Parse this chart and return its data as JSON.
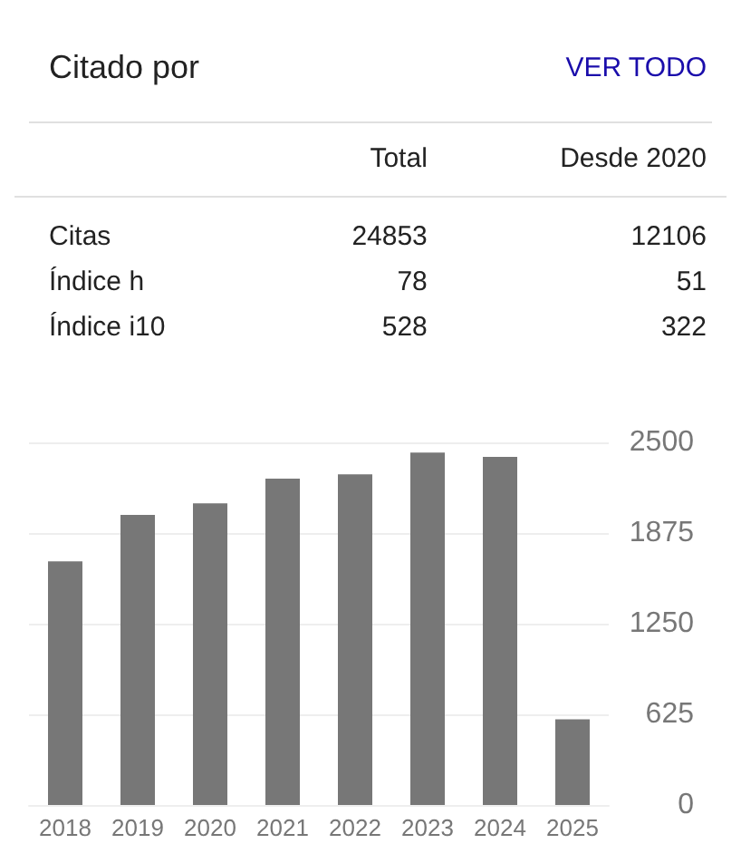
{
  "chart_data": [
    {
      "type": "other",
      "title": "Citado por",
      "annotations": [
        "VER TODO"
      ],
      "categories": [
        "Citas",
        "Índice h",
        "Índice i10"
      ],
      "data_labels": true,
      "series": [
        {
          "name": "Total",
          "values": [
            24853,
            78,
            528
          ]
        },
        {
          "name": "Desde 2020",
          "values": [
            12106,
            51,
            322
          ]
        }
      ]
    },
    {
      "type": "bar",
      "categories": [
        "2018",
        "2019",
        "2020",
        "2021",
        "2022",
        "2023",
        "2024",
        "2025"
      ],
      "values": [
        1680,
        2000,
        2080,
        2250,
        2280,
        2430,
        2400,
        590
      ],
      "color": "#777777",
      "ylim": [
        0,
        2500
      ],
      "yticks": [
        0,
        625,
        1250,
        1875,
        2500
      ],
      "grid": "y"
    }
  ]
}
